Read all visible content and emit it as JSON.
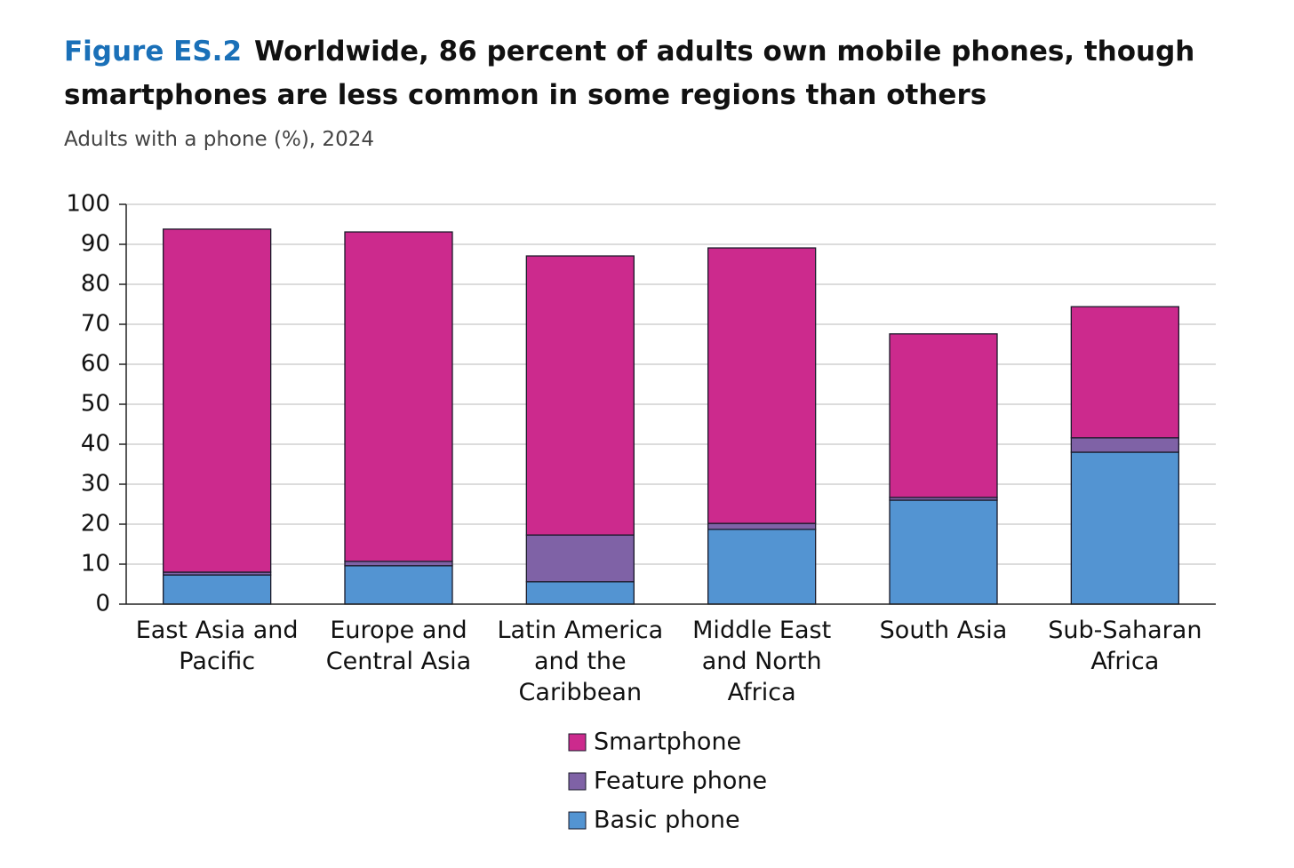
{
  "chart_data": {
    "type": "stacked_bar",
    "figure_label": "Figure ES.2",
    "title": "Worldwide, 86 percent of adults own mobile phones, though smartphones are less common in some regions than others",
    "subtitle": "Adults with a phone (%), 2024",
    "categories": [
      "East Asia and Pacific",
      "Europe and Central Asia",
      "Latin America and the Caribbean",
      "Middle East and North Africa",
      "South Asia",
      "Sub-Saharan Africa"
    ],
    "series": [
      {
        "name": "Basic phone",
        "color": "#5394d2",
        "values": [
          7.3,
          9.6,
          5.6,
          18.7,
          26.0,
          38.0
        ]
      },
      {
        "name": "Feature phone",
        "color": "#7f62a6",
        "values": [
          0.7,
          1.1,
          11.7,
          1.5,
          0.7,
          3.6
        ]
      },
      {
        "name": "Smartphone",
        "color": "#cc2a8d",
        "values": [
          85.8,
          82.4,
          69.8,
          68.9,
          40.9,
          32.8
        ]
      }
    ],
    "ylim": [
      0,
      100
    ],
    "yticks": [
      0,
      10,
      20,
      30,
      40,
      50,
      60,
      70,
      80,
      90,
      100
    ],
    "grid": true
  }
}
